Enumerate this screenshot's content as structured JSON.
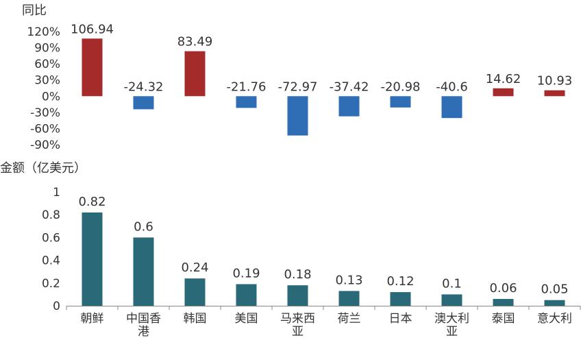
{
  "chart_data": [
    {
      "type": "bar",
      "ylabel": "同比",
      "categories": [
        "朝鲜",
        "中国香港",
        "韩国",
        "美国",
        "马来西亚",
        "荷兰",
        "日本",
        "澳大利亚",
        "泰国",
        "意大利"
      ],
      "values": [
        106.94,
        -24.32,
        83.49,
        -21.76,
        -72.97,
        -37.42,
        -20.98,
        -40.6,
        14.62,
        10.93
      ],
      "data_labels": [
        "106.94",
        "-24.32",
        "83.49",
        "-21.76",
        "-72.97",
        "-37.42",
        "-20.98",
        "-40.6",
        "14.62",
        "10.93"
      ],
      "yticks": [
        "120%",
        "90%",
        "60%",
        "30%",
        "0%",
        "-30%",
        "-60%",
        "-90%"
      ],
      "ylim": [
        -90,
        120
      ],
      "grid": false,
      "colors": {
        "positive": "#a52a2a",
        "negative": "#2f6db5"
      }
    },
    {
      "type": "bar",
      "ylabel": "金额（亿美元）",
      "categories": [
        "朝鲜",
        "中国香港",
        "韩国",
        "美国",
        "马来西亚",
        "荷兰",
        "日本",
        "澳大利亚",
        "泰国",
        "意大利"
      ],
      "category_lines": [
        [
          "朝鲜"
        ],
        [
          "中国香",
          "港"
        ],
        [
          "韩国"
        ],
        [
          "美国"
        ],
        [
          "马来西",
          "亚"
        ],
        [
          "荷兰"
        ],
        [
          "日本"
        ],
        [
          "澳大利",
          "亚"
        ],
        [
          "泰国"
        ],
        [
          "意大利"
        ]
      ],
      "values": [
        0.82,
        0.6,
        0.24,
        0.19,
        0.18,
        0.13,
        0.12,
        0.1,
        0.06,
        0.05
      ],
      "data_labels": [
        "0.82",
        "0.6",
        "0.24",
        "0.19",
        "0.18",
        "0.13",
        "0.12",
        "0.1",
        "0.06",
        "0.05"
      ],
      "yticks": [
        "1",
        "0.8",
        "0.6",
        "0.4",
        "0.2",
        "0"
      ],
      "ylim": [
        0,
        1
      ],
      "grid": false,
      "colors": {
        "bar": "#2a6a78"
      }
    }
  ]
}
